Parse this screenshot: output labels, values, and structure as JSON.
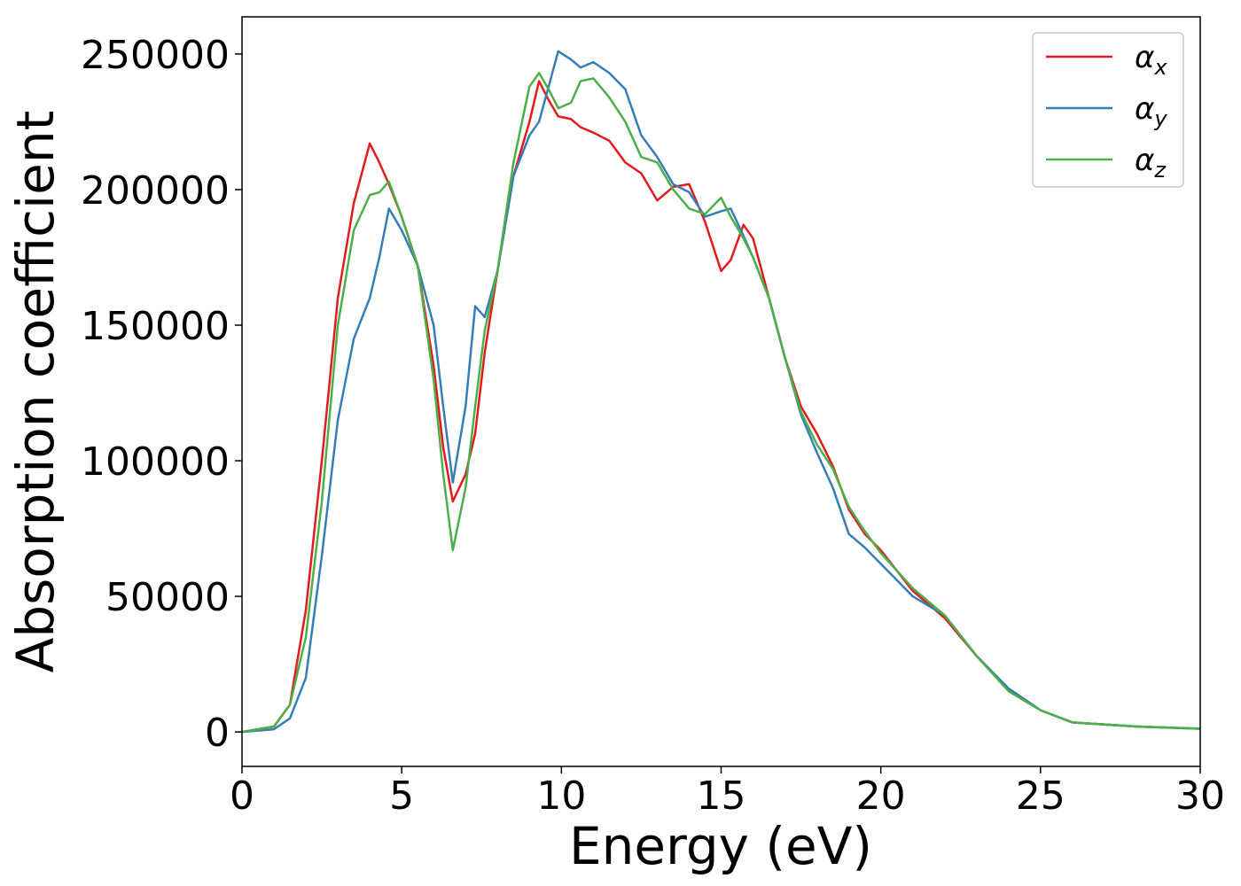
{
  "chart_data": {
    "type": "line",
    "xlabel": "Energy (eV)",
    "ylabel": "Absorption coefficient",
    "x": [
      0,
      1,
      1.5,
      2,
      2.5,
      3,
      3.5,
      4,
      4.3,
      4.6,
      5,
      5.5,
      6,
      6.3,
      6.6,
      7,
      7.3,
      7.6,
      8,
      8.5,
      9,
      9.3,
      9.6,
      9.9,
      10.3,
      10.6,
      11,
      11.5,
      12,
      12.5,
      13,
      13.5,
      14,
      14.5,
      15,
      15.3,
      15.7,
      16,
      16.5,
      17,
      17.5,
      18,
      18.5,
      19,
      19.5,
      20,
      21,
      22,
      23,
      24,
      25,
      26,
      28,
      30
    ],
    "series": [
      {
        "name": "αx",
        "color": "#e41a1c",
        "values": [
          0,
          2000,
          10000,
          45000,
          100000,
          160000,
          195000,
          217000,
          210000,
          202000,
          190000,
          172000,
          135000,
          105000,
          85000,
          95000,
          110000,
          140000,
          170000,
          205000,
          225000,
          240000,
          233000,
          227000,
          226000,
          223000,
          221000,
          218000,
          210000,
          206000,
          196000,
          201000,
          202000,
          188000,
          170000,
          174000,
          187000,
          182000,
          160000,
          138000,
          120000,
          110000,
          98000,
          82000,
          73000,
          67000,
          52000,
          42000,
          28000,
          16000,
          8000,
          3500,
          2000,
          1200
        ]
      },
      {
        "name": "αy",
        "color": "#377eb8",
        "values": [
          0,
          1000,
          5000,
          20000,
          65000,
          115000,
          145000,
          160000,
          175000,
          193000,
          185000,
          172000,
          150000,
          120000,
          92000,
          120000,
          157000,
          153000,
          170000,
          205000,
          220000,
          225000,
          238000,
          251000,
          248000,
          245000,
          247000,
          243000,
          237000,
          220000,
          212000,
          202000,
          199000,
          190000,
          192000,
          193000,
          183000,
          175000,
          160000,
          138000,
          117000,
          103000,
          90000,
          73000,
          68000,
          62000,
          50000,
          43000,
          28000,
          16000,
          8000,
          3500,
          2000,
          1200
        ]
      },
      {
        "name": "αz",
        "color": "#4daf4a",
        "values": [
          0,
          2000,
          10000,
          35000,
          85000,
          150000,
          185000,
          198000,
          199000,
          203000,
          190000,
          172000,
          130000,
          95000,
          67000,
          90000,
          120000,
          148000,
          170000,
          210000,
          238000,
          243000,
          237000,
          230000,
          232000,
          240000,
          241000,
          234000,
          225000,
          212000,
          210000,
          200000,
          193000,
          191000,
          197000,
          190000,
          182000,
          175000,
          160000,
          138000,
          118000,
          106000,
          97000,
          83000,
          74000,
          66000,
          53000,
          43000,
          28000,
          15000,
          8000,
          3500,
          2000,
          1200
        ]
      }
    ],
    "xlim": [
      0,
      30
    ],
    "xticks": [
      0,
      5,
      10,
      15,
      20,
      25,
      30
    ],
    "ylim": [
      -12700,
      263700
    ],
    "yticks": [
      0,
      50000,
      100000,
      150000,
      200000,
      250000
    ],
    "legend": "upper right"
  }
}
